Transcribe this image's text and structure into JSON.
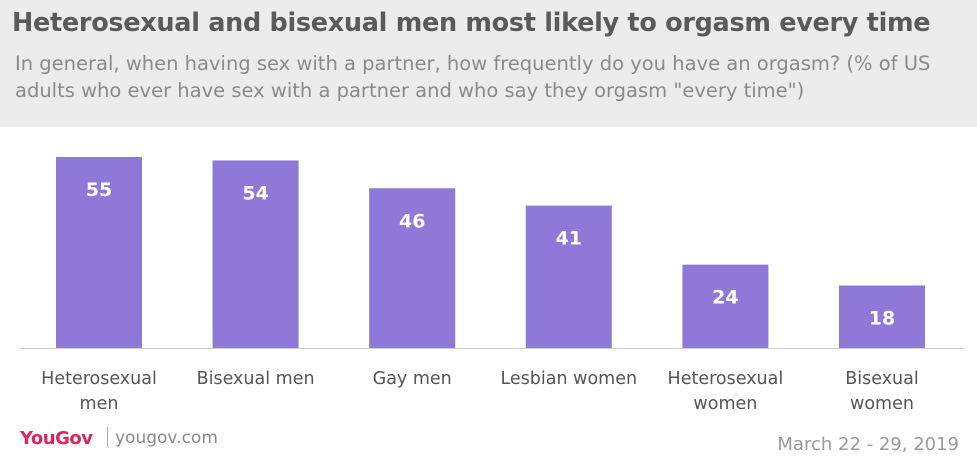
{
  "header": {
    "title": "Heterosexual and bisexual men most likely to orgasm every time",
    "subtitle": "In general, when having sex with a partner, how frequently do you have an orgasm? (% of US adults who ever have sex with a partner and who say they orgasm \"every time\")"
  },
  "footer": {
    "brand": "YouGov",
    "url": "yougov.com",
    "date": "March 22 - 29, 2019"
  },
  "colors": {
    "bar": "#8e78d8",
    "header_bg": "#ececec",
    "brand": "#e0245e"
  },
  "chart_data": {
    "type": "bar",
    "categories": [
      [
        "Heterosexual",
        "men"
      ],
      [
        "Bisexual men"
      ],
      [
        "Gay men"
      ],
      [
        "Lesbian women"
      ],
      [
        "Heterosexual",
        "women"
      ],
      [
        "Bisexual",
        "women"
      ]
    ],
    "values": [
      55,
      54,
      46,
      41,
      24,
      18
    ],
    "ylim": [
      0,
      55
    ],
    "grid": false,
    "legend": "none",
    "data_labels": "inside-top"
  }
}
